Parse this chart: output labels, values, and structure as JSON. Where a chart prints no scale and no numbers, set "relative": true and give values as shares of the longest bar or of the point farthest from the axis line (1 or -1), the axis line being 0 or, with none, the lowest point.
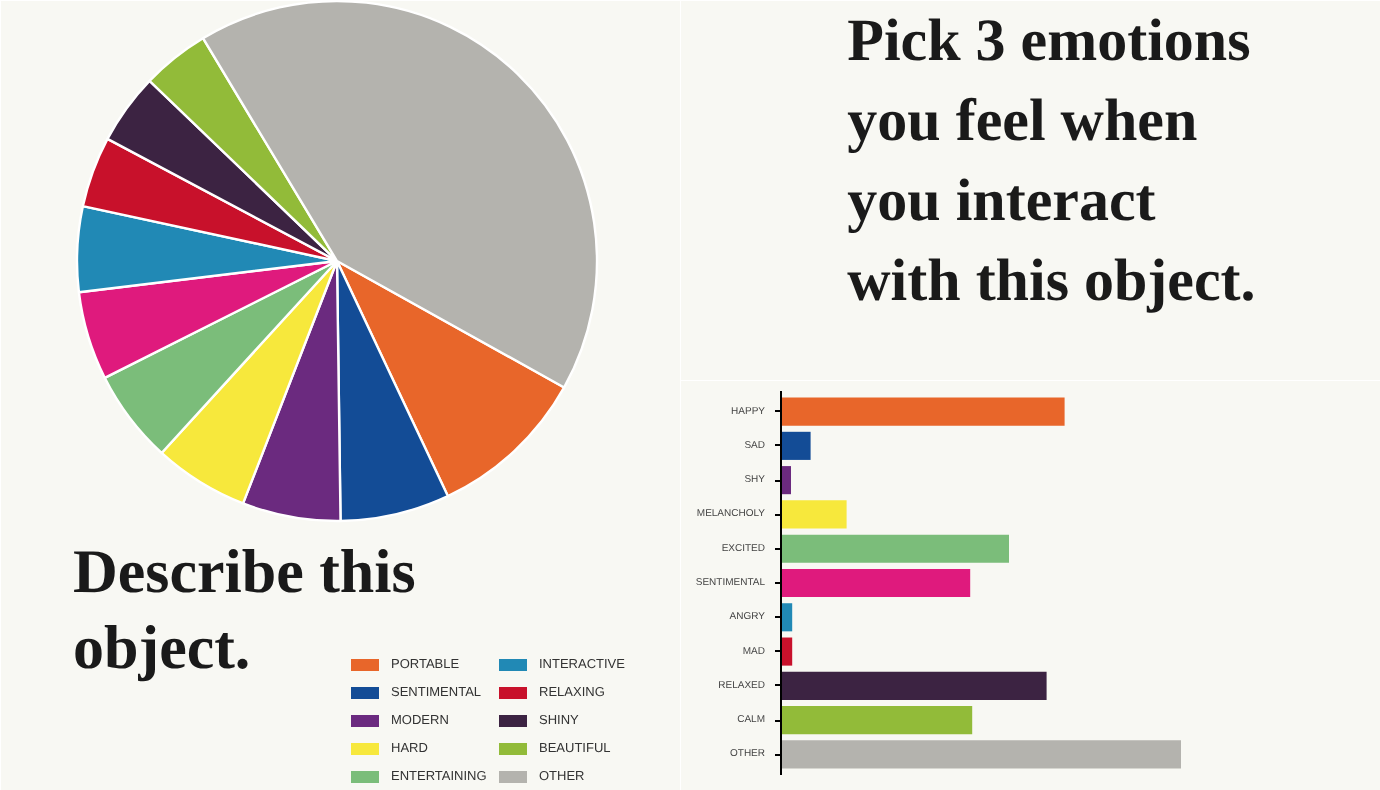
{
  "chart_data": [
    {
      "type": "pie",
      "title": "Describe this object.",
      "legend": "bottom right",
      "categories": [
        "PORTABLE",
        "SENTIMENTAL",
        "MODERN",
        "HARD",
        "ENTERTAINING",
        null,
        "INTERACTIVE",
        "RELAXING",
        "SHINY",
        "BEAUTIFUL",
        "OTHER"
      ],
      "values": [
        9.9,
        6.8,
        6.1,
        5.9,
        5.8,
        5.5,
        5.3,
        4.4,
        4.4,
        4.2,
        41.7
      ],
      "colors": [
        "#e8662a",
        "#134c96",
        "#6b2a7f",
        "#f7e83c",
        "#7bbd7a",
        "#df1a7d",
        "#2189b5",
        "#c8112b",
        "#3c2342",
        "#92bb39",
        "#b4b3ae"
      ]
    },
    {
      "type": "bar",
      "orientation": "horizontal",
      "relative": true,
      "title": "Pick 3 emotions\nyou feel when\nyou interact\nwith this object.",
      "categories": [
        "HAPPY",
        "SAD",
        "SHY",
        "MELANCHOLY",
        "EXCITED",
        "SENTIMENTAL",
        "ANGRY",
        "MAD",
        "RELAXED",
        "CALM",
        "OTHER"
      ],
      "values": [
        0.709,
        0.074,
        0.025,
        0.164,
        0.57,
        0.473,
        0.028,
        0.028,
        0.664,
        0.478,
        1
      ],
      "colors": [
        "#e8662a",
        "#134c96",
        "#6b2a7f",
        "#f7e83c",
        "#7bbd7a",
        "#df1a7d",
        "#2189b5",
        "#c8112b",
        "#3c2342",
        "#92bb39",
        "#b4b3ae"
      ]
    }
  ]
}
